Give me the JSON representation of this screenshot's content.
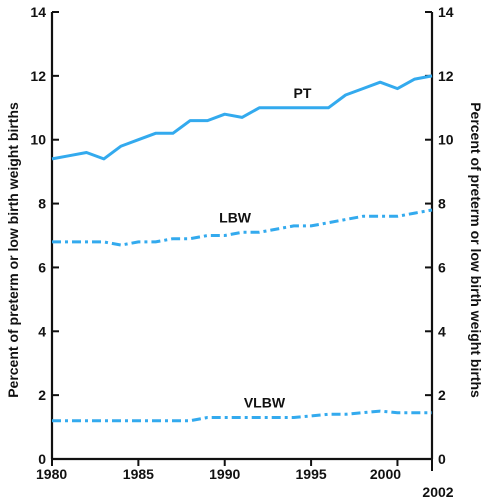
{
  "chart_data": {
    "type": "line",
    "title": "",
    "xlabel": "",
    "ylabel_left": "Percent of preterm or low birth weight births",
    "ylabel_right": "Percent of preterm or low birth weight births",
    "xlim": [
      1980,
      2002
    ],
    "ylim": [
      0,
      14
    ],
    "x_ticks": [
      1980,
      1985,
      1990,
      1995,
      2000,
      2002
    ],
    "x_tick_labels": [
      "1980",
      "1985",
      "1990",
      "1995",
      "2000",
      "2002"
    ],
    "y_ticks": [
      0,
      2,
      4,
      6,
      8,
      10,
      12,
      14
    ],
    "y_tick_labels": [
      "0",
      "2",
      "4",
      "6",
      "8",
      "10",
      "12",
      "14"
    ],
    "grid": false,
    "line_color": "#33aaee",
    "x": [
      1980,
      1981,
      1982,
      1983,
      1984,
      1985,
      1986,
      1987,
      1988,
      1989,
      1990,
      1991,
      1992,
      1993,
      1994,
      1995,
      1996,
      1997,
      1998,
      1999,
      2000,
      2001,
      2002
    ],
    "series": [
      {
        "name": "PT",
        "style": "solid",
        "values": [
          9.4,
          9.5,
          9.6,
          9.4,
          9.8,
          10.0,
          10.2,
          10.2,
          10.6,
          10.6,
          10.8,
          10.7,
          11.0,
          11.0,
          11.0,
          11.0,
          11.0,
          11.4,
          11.6,
          11.8,
          11.6,
          11.9,
          12.0
        ]
      },
      {
        "name": "LBW",
        "style": "dashdot",
        "values": [
          6.8,
          6.8,
          6.8,
          6.8,
          6.7,
          6.8,
          6.8,
          6.9,
          6.9,
          7.0,
          7.0,
          7.1,
          7.1,
          7.2,
          7.3,
          7.3,
          7.4,
          7.5,
          7.6,
          7.6,
          7.6,
          7.7,
          7.8
        ]
      },
      {
        "name": "VLBW",
        "style": "dashdot",
        "values": [
          1.2,
          1.2,
          1.2,
          1.2,
          1.2,
          1.2,
          1.2,
          1.2,
          1.2,
          1.3,
          1.3,
          1.3,
          1.3,
          1.3,
          1.3,
          1.35,
          1.4,
          1.4,
          1.45,
          1.5,
          1.45,
          1.45,
          1.45
        ]
      }
    ]
  }
}
